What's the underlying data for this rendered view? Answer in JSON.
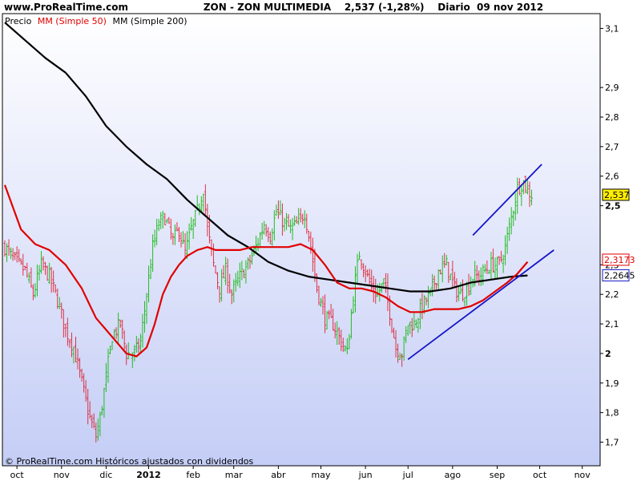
{
  "header": {
    "site": "www.ProRealTime.com",
    "title": "ZON - ZON MULTIMEDIA    2,537 (-1,28%)    Diario  09 nov 2012"
  },
  "legend": {
    "price": "Precio",
    "ma50": "MM (Simple 50)",
    "ma200": "MM (Simple 200)"
  },
  "footer": "© ProRealTime.com Históricos ajustados con dividendos",
  "badges": {
    "price": "2,537",
    "ma50": "2,3173",
    "ma200": "2,2645"
  },
  "colors": {
    "background_top": "#ffffff",
    "background_bottom": "#c4cdf6",
    "up": "#22bb22",
    "down": "#dd3344",
    "ma50": "#e00000",
    "ma200": "#000000",
    "trend": "#1515c8",
    "price_badge": "#ffee00"
  },
  "chart_data": {
    "type": "line",
    "y_ticks": [
      "1,7",
      "1,8",
      "1,9",
      "2",
      "2,1",
      "2,2",
      "2,3",
      "2,5",
      "2,6",
      "2,7",
      "2,8",
      "2,9",
      "3,1"
    ],
    "y_tick_values": [
      1.7,
      1.8,
      1.9,
      2.0,
      2.1,
      2.2,
      2.3,
      2.5,
      2.6,
      2.7,
      2.8,
      2.9,
      3.1
    ],
    "bold_ticks": [
      "2",
      "2,5"
    ],
    "x_ticks": [
      "oct",
      "nov",
      "dic",
      "2012",
      "feb",
      "mar",
      "abr",
      "may",
      "jun",
      "jul",
      "ago",
      "sep",
      "oct",
      "nov"
    ],
    "bold_x_ticks": [
      "2012"
    ],
    "ylim": [
      1.62,
      3.15
    ],
    "xlim": [
      0,
      278
    ],
    "x_tick_positions": [
      6,
      28,
      50,
      71,
      93,
      113,
      135,
      156,
      178,
      199,
      221,
      243,
      264,
      285
    ],
    "price_anchors": [
      [
        0,
        2.36
      ],
      [
        4,
        2.32
      ],
      [
        10,
        2.28
      ],
      [
        14,
        2.2
      ],
      [
        18,
        2.3
      ],
      [
        22,
        2.26
      ],
      [
        26,
        2.18
      ],
      [
        30,
        2.08
      ],
      [
        34,
        2.02
      ],
      [
        38,
        1.9
      ],
      [
        42,
        1.78
      ],
      [
        45,
        1.72
      ],
      [
        47,
        1.78
      ],
      [
        50,
        1.92
      ],
      [
        53,
        2.06
      ],
      [
        57,
        2.1
      ],
      [
        60,
        2.0
      ],
      [
        64,
        2.0
      ],
      [
        67,
        2.04
      ],
      [
        70,
        2.2
      ],
      [
        73,
        2.36
      ],
      [
        76,
        2.44
      ],
      [
        79,
        2.46
      ],
      [
        83,
        2.38
      ],
      [
        86,
        2.42
      ],
      [
        89,
        2.34
      ],
      [
        92,
        2.42
      ],
      [
        95,
        2.48
      ],
      [
        98,
        2.56
      ],
      [
        100,
        2.42
      ],
      [
        103,
        2.3
      ],
      [
        106,
        2.22
      ],
      [
        109,
        2.28
      ],
      [
        112,
        2.2
      ],
      [
        116,
        2.26
      ],
      [
        120,
        2.3
      ],
      [
        124,
        2.36
      ],
      [
        128,
        2.44
      ],
      [
        131,
        2.4
      ],
      [
        134,
        2.48
      ],
      [
        138,
        2.44
      ],
      [
        141,
        2.42
      ],
      [
        145,
        2.44
      ],
      [
        148,
        2.48
      ],
      [
        151,
        2.36
      ],
      [
        154,
        2.22
      ],
      [
        158,
        2.12
      ],
      [
        162,
        2.1
      ],
      [
        166,
        2.04
      ],
      [
        169,
        2.0
      ],
      [
        172,
        2.2
      ],
      [
        175,
        2.34
      ],
      [
        178,
        2.28
      ],
      [
        181,
        2.22
      ],
      [
        184,
        2.2
      ],
      [
        187,
        2.24
      ],
      [
        190,
        2.14
      ],
      [
        193,
        2.02
      ],
      [
        196,
        2.0
      ],
      [
        199,
        2.1
      ],
      [
        202,
        2.1
      ],
      [
        206,
        2.16
      ],
      [
        210,
        2.2
      ],
      [
        214,
        2.28
      ],
      [
        218,
        2.3
      ],
      [
        222,
        2.22
      ],
      [
        225,
        2.2
      ],
      [
        228,
        2.22
      ],
      [
        231,
        2.26
      ],
      [
        234,
        2.26
      ],
      [
        237,
        2.28
      ],
      [
        240,
        2.3
      ],
      [
        244,
        2.3
      ],
      [
        247,
        2.36
      ],
      [
        250,
        2.46
      ],
      [
        253,
        2.56
      ],
      [
        256,
        2.58
      ],
      [
        258,
        2.55
      ],
      [
        260,
        2.537
      ]
    ],
    "ma50": [
      [
        0,
        2.57
      ],
      [
        8,
        2.42
      ],
      [
        15,
        2.37
      ],
      [
        22,
        2.35
      ],
      [
        30,
        2.3
      ],
      [
        38,
        2.22
      ],
      [
        45,
        2.12
      ],
      [
        50,
        2.08
      ],
      [
        55,
        2.04
      ],
      [
        60,
        2.0
      ],
      [
        65,
        1.99
      ],
      [
        70,
        2.02
      ],
      [
        74,
        2.1
      ],
      [
        78,
        2.2
      ],
      [
        82,
        2.26
      ],
      [
        86,
        2.3
      ],
      [
        90,
        2.33
      ],
      [
        95,
        2.35
      ],
      [
        100,
        2.36
      ],
      [
        104,
        2.35
      ],
      [
        110,
        2.35
      ],
      [
        116,
        2.35
      ],
      [
        122,
        2.36
      ],
      [
        128,
        2.36
      ],
      [
        134,
        2.36
      ],
      [
        140,
        2.36
      ],
      [
        146,
        2.37
      ],
      [
        152,
        2.35
      ],
      [
        158,
        2.3
      ],
      [
        164,
        2.24
      ],
      [
        170,
        2.22
      ],
      [
        176,
        2.22
      ],
      [
        182,
        2.21
      ],
      [
        188,
        2.19
      ],
      [
        194,
        2.16
      ],
      [
        200,
        2.14
      ],
      [
        206,
        2.14
      ],
      [
        212,
        2.15
      ],
      [
        218,
        2.15
      ],
      [
        224,
        2.15
      ],
      [
        230,
        2.16
      ],
      [
        236,
        2.18
      ],
      [
        242,
        2.21
      ],
      [
        248,
        2.24
      ],
      [
        253,
        2.27
      ],
      [
        258,
        2.31
      ]
    ],
    "ma200": [
      [
        0,
        3.12
      ],
      [
        10,
        3.06
      ],
      [
        20,
        3.0
      ],
      [
        30,
        2.95
      ],
      [
        40,
        2.87
      ],
      [
        50,
        2.77
      ],
      [
        60,
        2.7
      ],
      [
        70,
        2.64
      ],
      [
        80,
        2.59
      ],
      [
        90,
        2.52
      ],
      [
        100,
        2.46
      ],
      [
        110,
        2.4
      ],
      [
        120,
        2.36
      ],
      [
        130,
        2.31
      ],
      [
        140,
        2.28
      ],
      [
        150,
        2.26
      ],
      [
        160,
        2.25
      ],
      [
        170,
        2.24
      ],
      [
        180,
        2.23
      ],
      [
        190,
        2.22
      ],
      [
        200,
        2.21
      ],
      [
        210,
        2.21
      ],
      [
        220,
        2.22
      ],
      [
        230,
        2.24
      ],
      [
        240,
        2.25
      ],
      [
        250,
        2.26
      ],
      [
        258,
        2.264
      ]
    ],
    "trendlines": [
      {
        "from": [
          231,
          2.4
        ],
        "to": [
          265,
          2.64
        ]
      },
      {
        "from": [
          199,
          1.98
        ],
        "to": [
          271,
          2.35
        ]
      }
    ],
    "grid": false
  }
}
